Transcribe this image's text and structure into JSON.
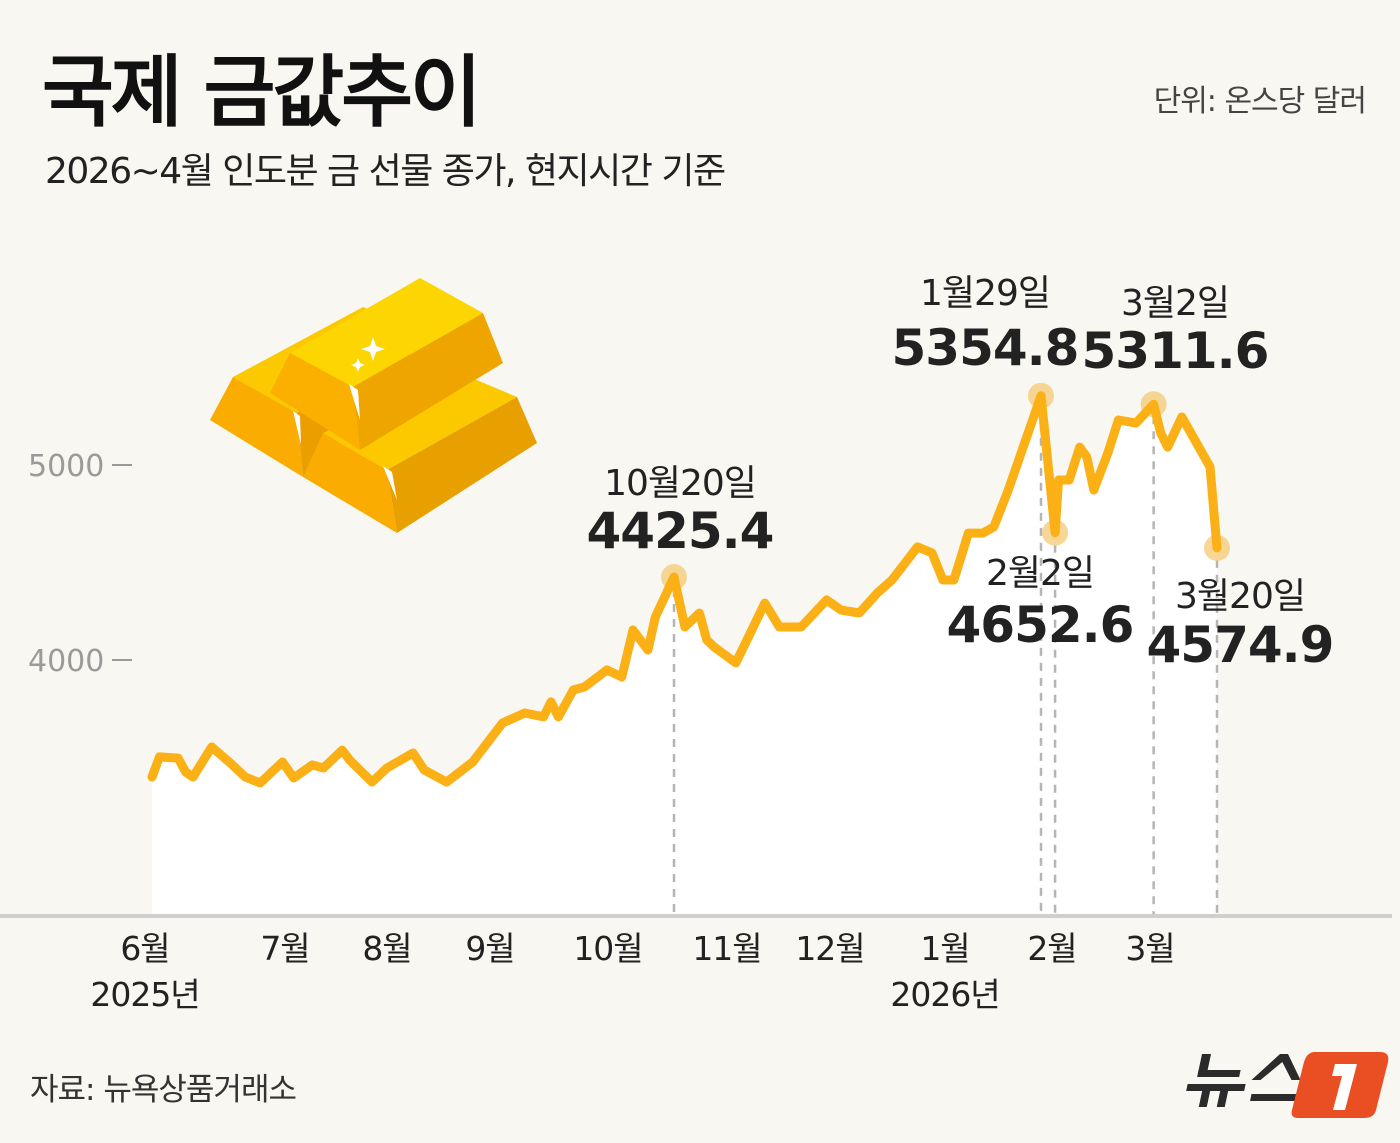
{
  "header": {
    "title": "국제 금값추이",
    "subtitle": "2026~4월 인도분 금 선물 종가, 현지시간 기준",
    "unit": "단위: 온스당 달러"
  },
  "footer": {
    "source": "자료: 뉴욕상품거래소",
    "logo_text": "뉴스1"
  },
  "colors": {
    "line": "#fbb016",
    "highlight": "#f6cf84",
    "area": "#ffffff",
    "background": "#f8f7f1",
    "logo_accent": "#ea4f24"
  },
  "illustration": "gold-bars-icon",
  "chart_data": {
    "type": "area",
    "title": "국제 금값추이",
    "ylabel": "",
    "xlabel": "",
    "grid": false,
    "y_ticks": [
      "4000",
      "5000"
    ],
    "x_ticks": [
      {
        "month": "6월",
        "year": "2025년"
      },
      {
        "month": "7월",
        "year": ""
      },
      {
        "month": "8월",
        "year": ""
      },
      {
        "month": "9월",
        "year": ""
      },
      {
        "month": "10월",
        "year": ""
      },
      {
        "month": "11월",
        "year": ""
      },
      {
        "month": "12월",
        "year": ""
      },
      {
        "month": "1월",
        "year": "2026년"
      },
      {
        "month": "2월",
        "year": ""
      },
      {
        "month": "3월",
        "year": ""
      }
    ],
    "series": [
      {
        "points": [
          [
            "2025-06-02",
            3400
          ],
          [
            "2025-06-04",
            3503
          ],
          [
            "2025-06-09",
            3497
          ],
          [
            "2025-06-11",
            3426
          ],
          [
            "2025-06-13",
            3400
          ],
          [
            "2025-06-18",
            3554
          ],
          [
            "2025-06-23",
            3472
          ],
          [
            "2025-06-27",
            3400
          ],
          [
            "2025-07-01",
            3369
          ],
          [
            "2025-07-07",
            3477
          ],
          [
            "2025-07-10",
            3395
          ],
          [
            "2025-07-15",
            3462
          ],
          [
            "2025-07-18",
            3446
          ],
          [
            "2025-07-23",
            3538
          ],
          [
            "2025-07-25",
            3487
          ],
          [
            "2025-07-31",
            3374
          ],
          [
            "2025-08-04",
            3446
          ],
          [
            "2025-08-11",
            3523
          ],
          [
            "2025-08-14",
            3436
          ],
          [
            "2025-08-20",
            3374
          ],
          [
            "2025-08-27",
            3477
          ],
          [
            "2025-09-04",
            3677
          ],
          [
            "2025-09-10",
            3728
          ],
          [
            "2025-09-15",
            3708
          ],
          [
            "2025-09-17",
            3785
          ],
          [
            "2025-09-19",
            3708
          ],
          [
            "2025-09-23",
            3846
          ],
          [
            "2025-09-26",
            3862
          ],
          [
            "2025-10-02",
            3949
          ],
          [
            "2025-10-06",
            3913
          ],
          [
            "2025-10-09",
            4154
          ],
          [
            "2025-10-13",
            4051
          ],
          [
            "2025-10-15",
            4221
          ],
          [
            "2025-10-20",
            4425.4
          ],
          [
            "2025-10-23",
            4169
          ],
          [
            "2025-10-27",
            4241
          ],
          [
            "2025-10-29",
            4103
          ],
          [
            "2025-10-31",
            4067
          ],
          [
            "2025-11-06",
            3985
          ],
          [
            "2025-11-10",
            4138
          ],
          [
            "2025-11-14",
            4292
          ],
          [
            "2025-11-18",
            4169
          ],
          [
            "2025-11-24",
            4169
          ],
          [
            "2025-12-01",
            4308
          ],
          [
            "2025-12-05",
            4256
          ],
          [
            "2025-12-10",
            4241
          ],
          [
            "2025-12-15",
            4344
          ],
          [
            "2025-12-19",
            4410
          ],
          [
            "2025-12-26",
            4580
          ],
          [
            "2025-12-30",
            4549
          ],
          [
            "2026-01-02",
            4410
          ],
          [
            "2026-01-05",
            4410
          ],
          [
            "2026-01-07",
            4528
          ],
          [
            "2026-01-09",
            4651
          ],
          [
            "2026-01-13",
            4651
          ],
          [
            "2026-01-16",
            4682
          ],
          [
            "2026-01-20",
            4872
          ],
          [
            "2026-01-29",
            5354.8
          ],
          [
            "2026-02-02",
            4652.6
          ],
          [
            "2026-02-03",
            4923
          ],
          [
            "2026-02-06",
            4923
          ],
          [
            "2026-02-09",
            5092
          ],
          [
            "2026-02-11",
            5041
          ],
          [
            "2026-02-13",
            4872
          ],
          [
            "2026-02-17",
            5062
          ],
          [
            "2026-02-20",
            5231
          ],
          [
            "2026-02-25",
            5215
          ],
          [
            "2026-03-02",
            5311.6
          ],
          [
            "2026-03-04",
            5164
          ],
          [
            "2026-03-06",
            5092
          ],
          [
            "2026-03-10",
            5246
          ],
          [
            "2026-03-18",
            4990
          ],
          [
            "2026-03-20",
            4574.9
          ]
        ]
      }
    ],
    "annotations": [
      {
        "date_label": "10월20일",
        "value_label": "4425.4",
        "date": "2025-10-20",
        "value": 4425.4
      },
      {
        "date_label": "1월29일",
        "value_label": "5354.8",
        "date": "2026-01-29",
        "value": 5354.8
      },
      {
        "date_label": "2월2일",
        "value_label": "4652.6",
        "date": "2026-02-02",
        "value": 4652.6
      },
      {
        "date_label": "3월2일",
        "value_label": "5311.6",
        "date": "2026-03-02",
        "value": 5311.6
      },
      {
        "date_label": "3월20일",
        "value_label": "4574.9",
        "date": "2026-03-20",
        "value": 4574.9
      }
    ]
  }
}
